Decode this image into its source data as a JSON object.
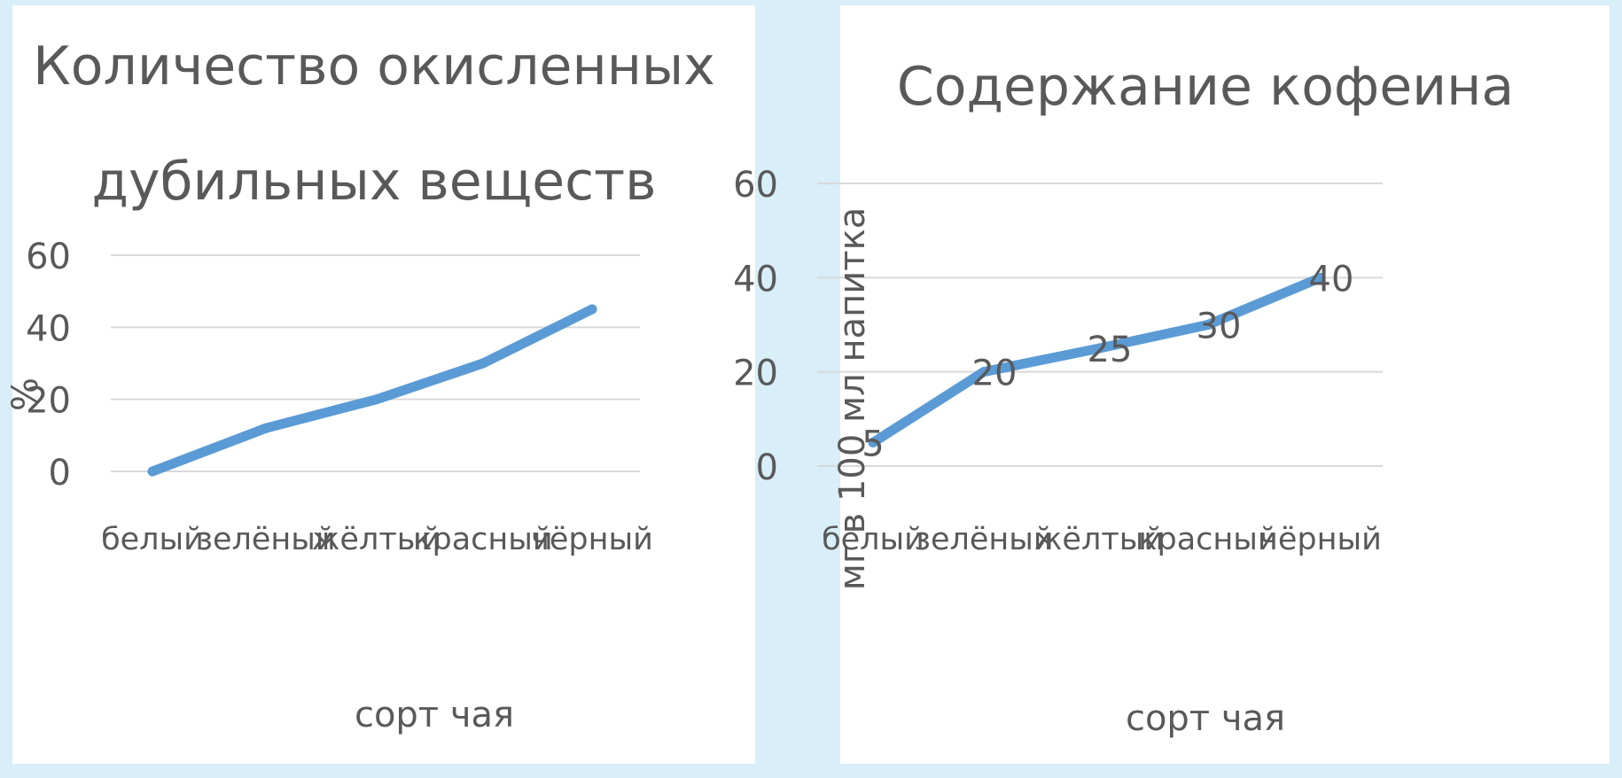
{
  "colors": {
    "background": "#d8eef8",
    "panel": "#ffffff",
    "line": "#5b9bd5",
    "grid": "#d9d9d9",
    "text": "#595959"
  },
  "chart_data": [
    {
      "type": "line",
      "title_lines": [
        "Количество окисленных",
        "дубильных веществ"
      ],
      "categories": [
        "белый",
        "зелёный",
        "жёлтый",
        "красный",
        "чёрный"
      ],
      "series": [
        {
          "values": [
            0,
            12,
            20,
            30,
            45
          ]
        }
      ],
      "xlabel": "сорт чая",
      "ylabel": "%",
      "ylim": [
        0,
        60
      ],
      "yticks": [
        0,
        20,
        40,
        60
      ],
      "grid": true,
      "data_labels": false
    },
    {
      "type": "line",
      "title_lines": [
        "Содержание кофеина"
      ],
      "categories": [
        "белый",
        "зелёный",
        "жёлтый",
        "красный",
        "чёрный"
      ],
      "series": [
        {
          "values": [
            5,
            20,
            25,
            30,
            40
          ]
        }
      ],
      "xlabel": "сорт чая",
      "ylabel": "мг в 100 мл напитка",
      "ylim": [
        0,
        60
      ],
      "yticks": [
        0,
        20,
        40,
        60
      ],
      "grid": true,
      "data_labels": true
    }
  ]
}
